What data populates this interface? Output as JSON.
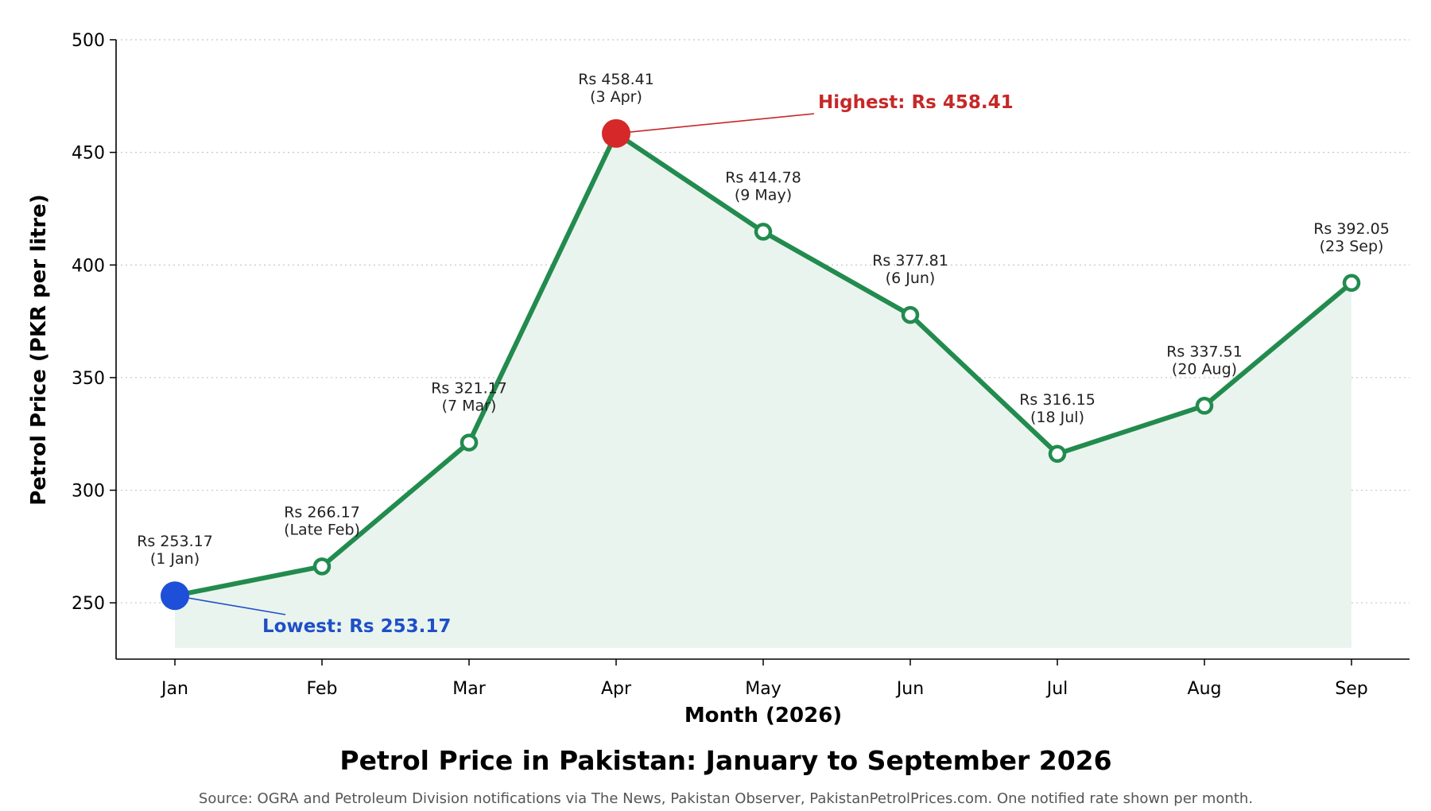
{
  "chart_data": {
    "type": "line",
    "title": "Petrol Price in Pakistan: January to September 2026",
    "source": "Source: OGRA and Petroleum Division notifications via The News, Pakistan Observer, PakistanPetrolPrices.com. One notified rate shown per month.",
    "xlabel": "Month (2026)",
    "ylabel": "Petrol Price (PKR per litre)",
    "categories": [
      "Jan",
      "Feb",
      "Mar",
      "Apr",
      "May",
      "Jun",
      "Jul",
      "Aug",
      "Sep"
    ],
    "values": [
      253.17,
      266.17,
      321.17,
      458.41,
      414.78,
      377.81,
      316.15,
      337.51,
      392.05
    ],
    "point_labels": [
      {
        "price": "Rs 253.17",
        "date": "(1 Jan)"
      },
      {
        "price": "Rs 266.17",
        "date": "(Late Feb)"
      },
      {
        "price": "Rs 321.17",
        "date": "(7 Mar)"
      },
      {
        "price": "Rs 458.41",
        "date": "(3 Apr)"
      },
      {
        "price": "Rs 414.78",
        "date": "(9 May)"
      },
      {
        "price": "Rs 377.81",
        "date": "(6 Jun)"
      },
      {
        "price": "Rs 316.15",
        "date": "(18 Jul)"
      },
      {
        "price": "Rs 337.51",
        "date": "(20 Aug)"
      },
      {
        "price": "Rs 392.05",
        "date": "(23 Sep)"
      }
    ],
    "ylim": [
      225,
      500
    ],
    "yticks": [
      250,
      300,
      350,
      400,
      450,
      500
    ],
    "grid": "horizontal dotted",
    "highest": {
      "label": "Highest: Rs 458.41",
      "index": 3
    },
    "lowest": {
      "label": "Lowest: Rs 253.17",
      "index": 0
    },
    "colors": {
      "line": "#228B4E",
      "fill": "#EAF4EE",
      "highest": "#D62828",
      "lowest": "#1E4FD8",
      "highest_text": "#C62828",
      "lowest_text": "#1E4FC8"
    }
  }
}
